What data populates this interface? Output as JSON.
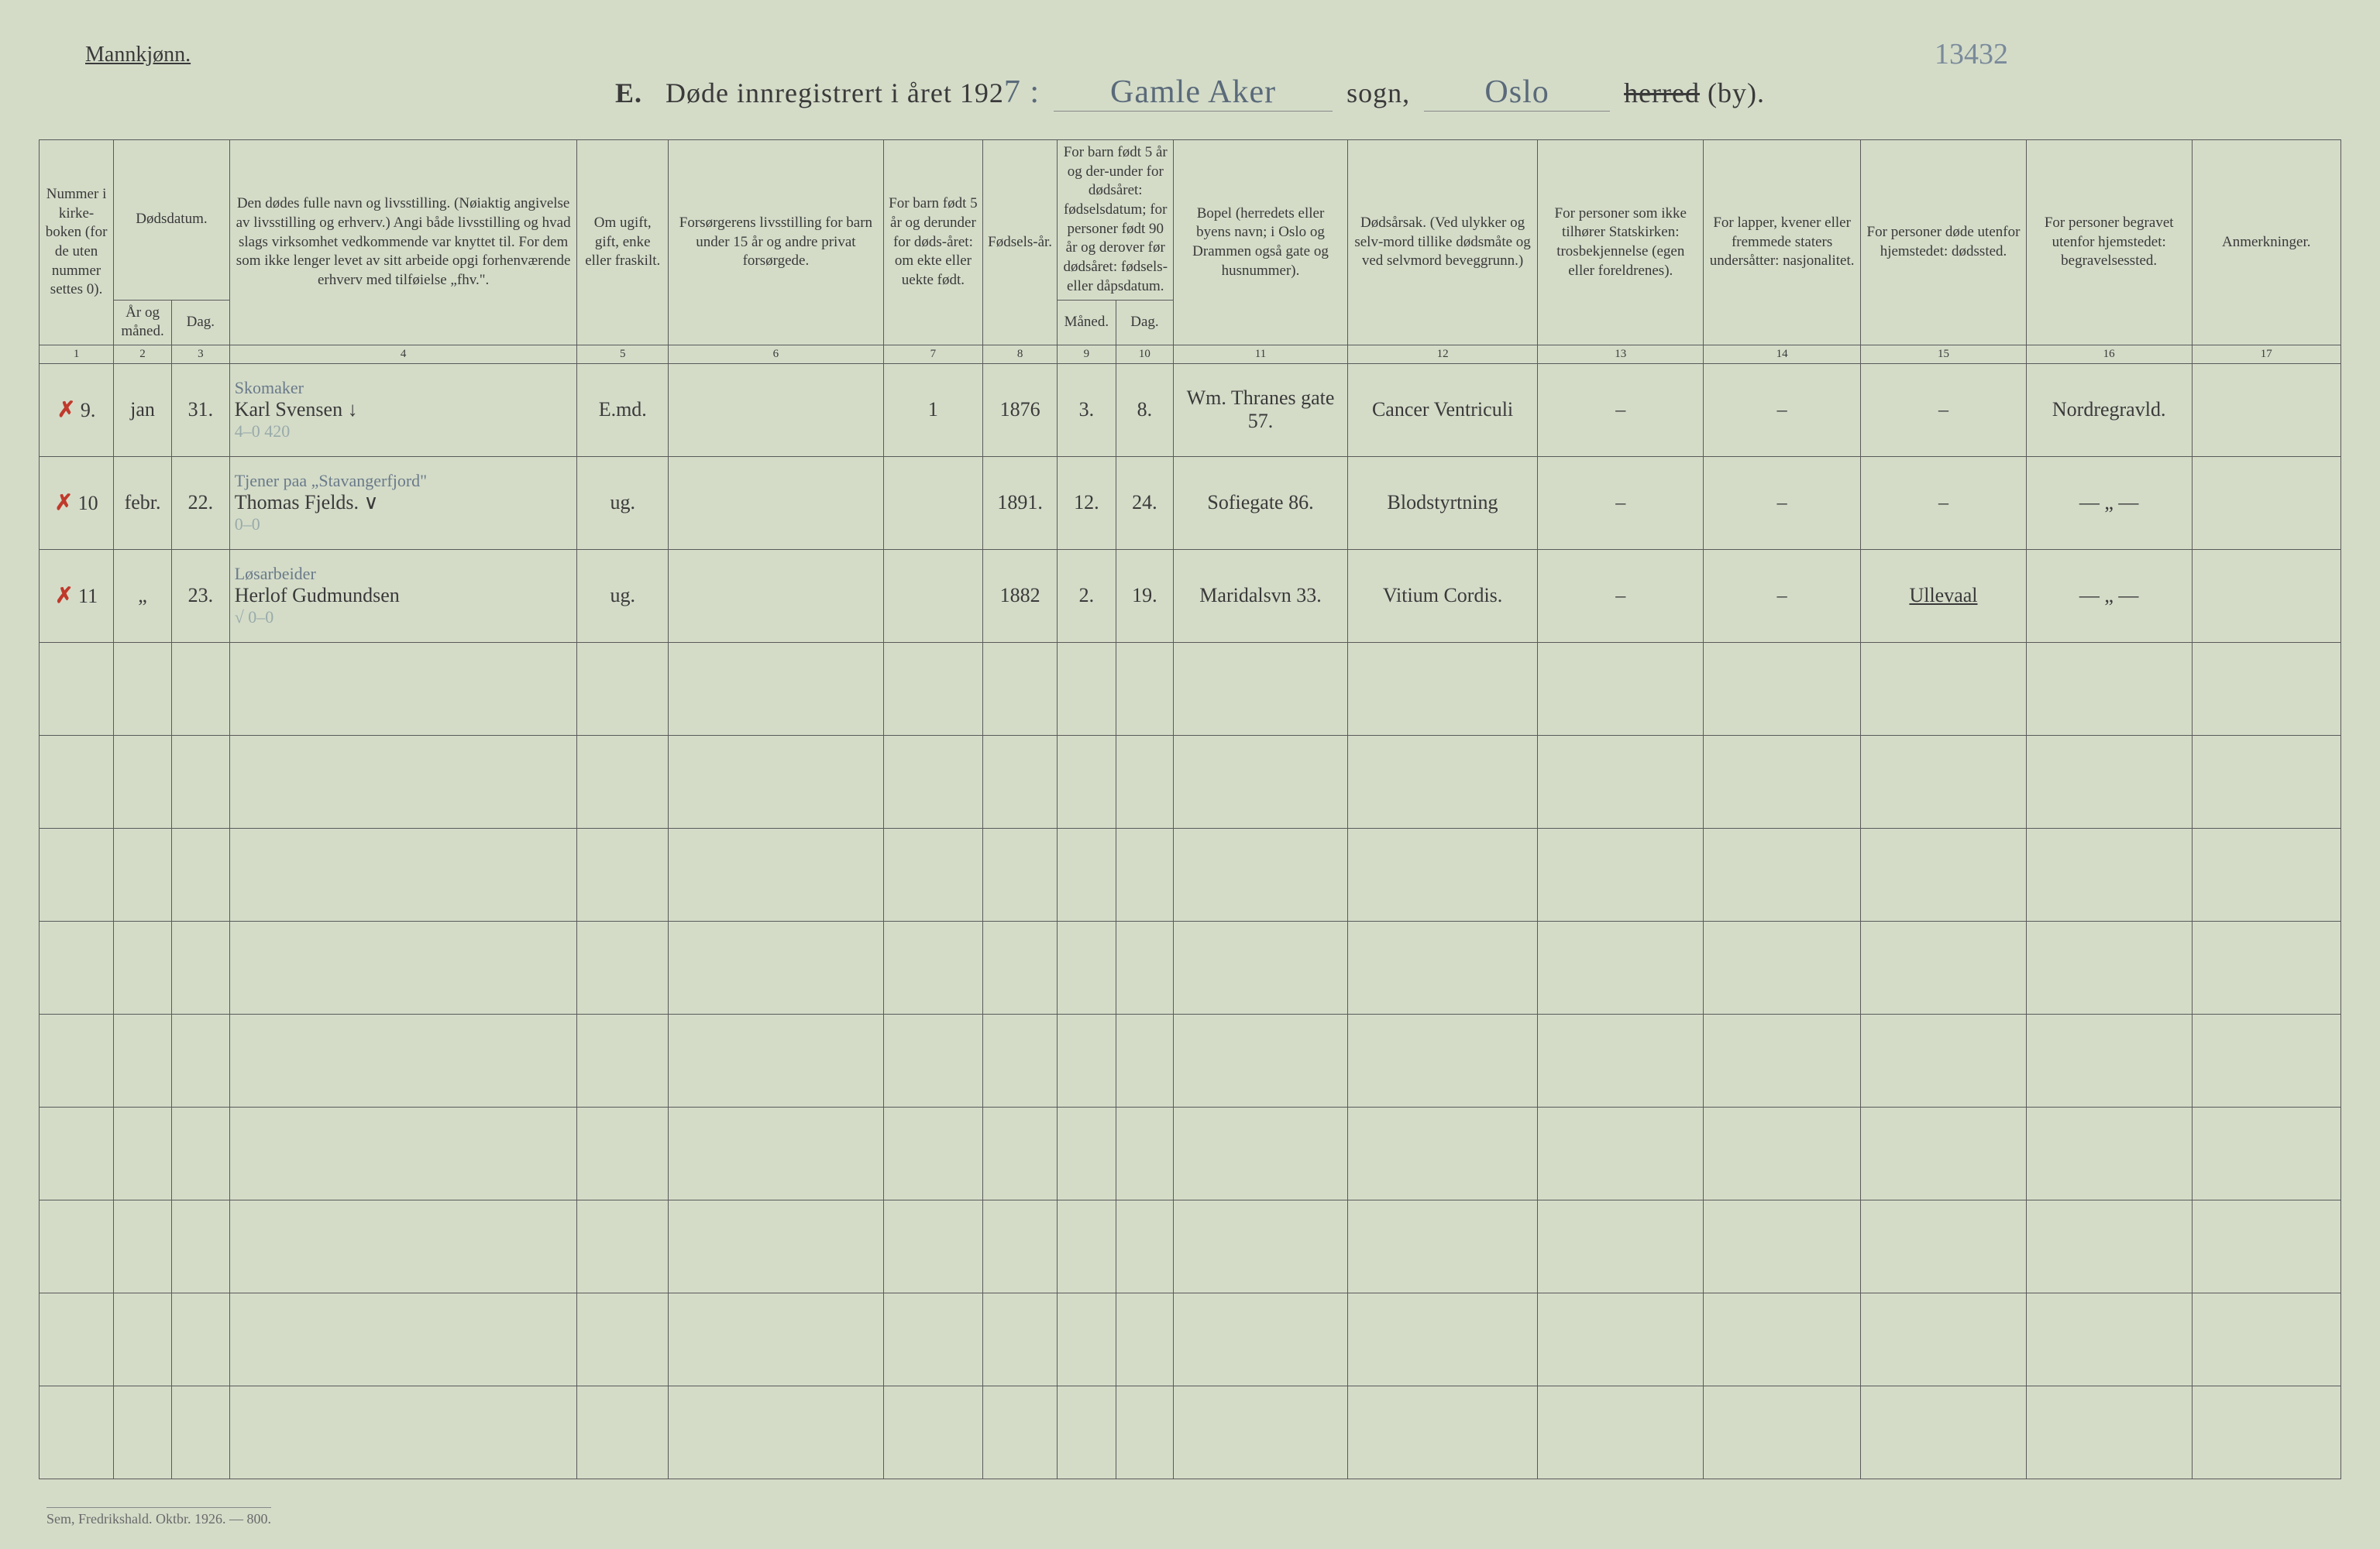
{
  "page": {
    "background_color": "#d4dcc8",
    "border_color": "#5a5a5a",
    "text_color": "#3a3a3a",
    "handwriting_color": "#5a6a7a",
    "red_mark_color": "#c0392b"
  },
  "header": {
    "gender": "Mannkjønn.",
    "section_letter": "E.",
    "title_prefix": "Døde innregistrert i året 192",
    "year_suffix_hand": "7 :",
    "parish_hand": "Gamle Aker",
    "sogn_label": "sogn,",
    "city_hand": "Oslo",
    "herred_struck": "herred",
    "by_label": "(by).",
    "top_right_number": "13432"
  },
  "columns": {
    "c1": "Nummer i kirke-boken (for de uten nummer settes 0).",
    "c2_top": "Dødsdatum.",
    "c2a": "År og måned.",
    "c2b": "Dag.",
    "c4": "Den dødes fulle navn og livsstilling. (Nøiaktig angivelse av livsstilling og erhverv.) Angi både livsstilling og hvad slags virksomhet vedkommende var knyttet til. For dem som ikke lenger levet av sitt arbeide opgi forhenværende erhverv med tilføielse „fhv.\".",
    "c5": "Om ugift, gift, enke eller fraskilt.",
    "c6": "Forsørgerens livsstilling for barn under 15 år og andre privat forsørgede.",
    "c7": "For barn født 5 år og derunder for døds-året: om ekte eller uekte født.",
    "c8": "Fødsels-år.",
    "c9_top": "For barn født 5 år og der-under for dødsåret: fødselsdatum; for personer født 90 år og derover før dødsåret: fødsels- eller dåpsdatum.",
    "c9a": "Måned.",
    "c9b": "Dag.",
    "c11": "Bopel (herredets eller byens navn; i Oslo og Drammen også gate og husnummer).",
    "c12": "Dødsårsak. (Ved ulykker og selv-mord tillike dødsmåte og ved selvmord beveggrunn.)",
    "c13": "For personer som ikke tilhører Statskirken: trosbekjennelse (egen eller foreldrenes).",
    "c14": "For lapper, kvener eller fremmede staters undersåtter: nasjonalitet.",
    "c15": "For personer døde utenfor hjemstedet: dødssted.",
    "c16": "For personer begravet utenfor hjemstedet: begravelsessted.",
    "c17": "Anmerkninger."
  },
  "colnums": [
    "1",
    "2",
    "3",
    "4",
    "5",
    "6",
    "7",
    "8",
    "9",
    "10",
    "11",
    "12",
    "13",
    "14",
    "15",
    "16",
    "17"
  ],
  "rows": [
    {
      "mark": "✗",
      "num": "9.",
      "month": "jan",
      "day": "31.",
      "name_top": "Skomaker",
      "name_main": "Karl Svensen ↓",
      "name_code": "4–0   420",
      "status": "E.md.",
      "provider": "",
      "child5": "1",
      "birthyr": "1876",
      "bm": "3.",
      "bd": "8.",
      "residence": "Wm. Thranes gate 57.",
      "cause": "Cancer Ventriculi",
      "c13": "–",
      "c14": "–",
      "c15": "–",
      "c16": "Nordregravld.",
      "c17": ""
    },
    {
      "mark": "✗",
      "num": "10",
      "month": "febr.",
      "day": "22.",
      "name_top": "Tjener paa „Stavangerfjord\"",
      "name_main": "Thomas Fjelds.  ∨",
      "name_code": "0–0",
      "status": "ug.",
      "provider": "",
      "child5": "",
      "birthyr": "1891.",
      "bm": "12.",
      "bd": "24.",
      "residence": "Sofiegate 86.",
      "cause": "Blodstyrtning",
      "c13": "–",
      "c14": "–",
      "c15": "–",
      "c16": "— „ —",
      "c17": ""
    },
    {
      "mark": "✗",
      "num": "11",
      "month": "„",
      "day": "23.",
      "name_top": "Løsarbeider",
      "name_main": "Herlof Gudmundsen",
      "name_code": "√ 0–0",
      "status": "ug.",
      "provider": "",
      "child5": "",
      "birthyr": "1882",
      "bm": "2.",
      "bd": "19.",
      "residence": "Maridalsvn 33.",
      "cause": "Vitium Cordis.",
      "c13": "–",
      "c14": "–",
      "c15": "Ullevaal",
      "c16": "— „ —",
      "c17": ""
    }
  ],
  "footer": "Sem, Fredrikshald. Oktbr. 1926. — 800."
}
